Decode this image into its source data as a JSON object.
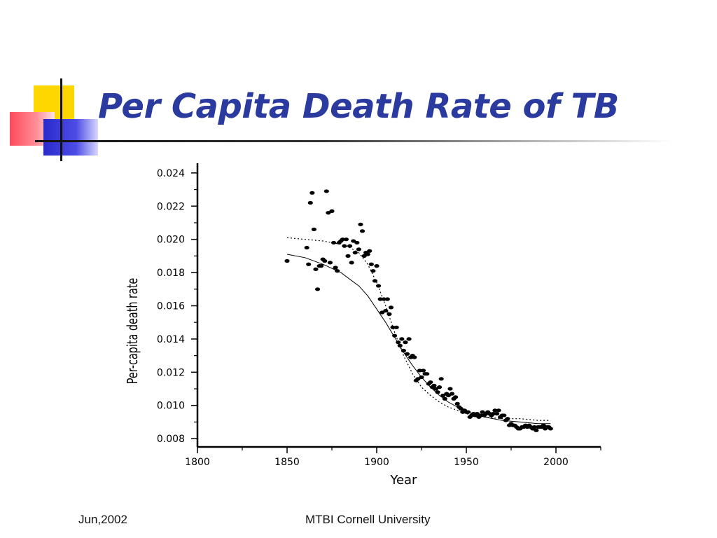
{
  "slide": {
    "title": "Per Capita Death Rate of TB",
    "footer_left": "Jun,2002",
    "footer_center": "MTBI Cornell University"
  },
  "colors": {
    "title": "#2b3a9e",
    "logo_yellow": "#ffd700",
    "logo_red": "#ff4a5a",
    "logo_blue": "#2a2acc"
  },
  "chart_data": {
    "type": "scatter",
    "xlabel": "Year",
    "ylabel": "Per-capita death rate",
    "xlim": [
      1800,
      2025
    ],
    "ylim": [
      0.0075,
      0.0245
    ],
    "xticks": [
      1800,
      1850,
      1900,
      1950,
      2000
    ],
    "yticks": [
      0.008,
      0.01,
      0.012,
      0.014,
      0.016,
      0.018,
      0.02,
      0.022,
      0.024
    ],
    "ytick_labels": [
      "0.008",
      "0.010",
      "0.012",
      "0.014",
      "0.016",
      "0.018",
      "0.020",
      "0.022",
      "0.024"
    ],
    "grid": false,
    "series": [
      {
        "kind": "points",
        "x": [
          1850,
          1861,
          1862,
          1863,
          1864,
          1865,
          1866,
          1867,
          1868,
          1869,
          1870,
          1871,
          1872,
          1873,
          1874,
          1875,
          1876,
          1877,
          1878,
          1879,
          1880,
          1881,
          1882,
          1883,
          1884,
          1885,
          1886,
          1887,
          1888,
          1889,
          1890,
          1891,
          1892,
          1893,
          1894,
          1895,
          1896,
          1897,
          1898,
          1899,
          1900,
          1901,
          1902,
          1903,
          1904,
          1905,
          1906,
          1907,
          1908,
          1909,
          1910,
          1911,
          1912,
          1913,
          1914,
          1915,
          1916,
          1917,
          1918,
          1919,
          1920,
          1921,
          1922,
          1923,
          1924,
          1925,
          1926,
          1927,
          1928,
          1929,
          1930,
          1931,
          1932,
          1933,
          1934,
          1935,
          1936,
          1937,
          1938,
          1939,
          1940,
          1941,
          1942,
          1943,
          1944,
          1945,
          1946,
          1947,
          1948,
          1949,
          1950,
          1951,
          1952,
          1953,
          1954,
          1955,
          1956,
          1957,
          1958,
          1959,
          1960,
          1961,
          1962,
          1963,
          1964,
          1965,
          1966,
          1967,
          1968,
          1969,
          1970,
          1971,
          1972,
          1973,
          1974,
          1975,
          1976,
          1977,
          1978,
          1979,
          1980,
          1981,
          1982,
          1983,
          1984,
          1985,
          1986,
          1987,
          1988,
          1989,
          1990,
          1991,
          1992,
          1993,
          1994,
          1995,
          1996,
          1997
        ],
        "y": [
          0.0187,
          0.0195,
          0.0185,
          0.0222,
          0.0228,
          0.0206,
          0.0182,
          0.017,
          0.0184,
          0.0184,
          0.0188,
          0.0187,
          0.0229,
          0.0216,
          0.0186,
          0.0217,
          0.0198,
          0.0183,
          0.0181,
          0.0198,
          0.0199,
          0.02,
          0.0196,
          0.02,
          0.019,
          0.0196,
          0.0186,
          0.0199,
          0.0192,
          0.0198,
          0.0194,
          0.0209,
          0.0205,
          0.019,
          0.0192,
          0.0191,
          0.0193,
          0.0185,
          0.0181,
          0.0175,
          0.0184,
          0.0172,
          0.0164,
          0.0156,
          0.0164,
          0.0157,
          0.0164,
          0.0155,
          0.0159,
          0.0147,
          0.0142,
          0.0147,
          0.0138,
          0.0136,
          0.014,
          0.0133,
          0.0138,
          0.0131,
          0.014,
          0.0129,
          0.013,
          0.0129,
          0.0115,
          0.0116,
          0.0121,
          0.0117,
          0.0121,
          0.0119,
          0.0119,
          0.0113,
          0.0114,
          0.0111,
          0.0112,
          0.011,
          0.0108,
          0.0111,
          0.0116,
          0.0106,
          0.0104,
          0.0107,
          0.0106,
          0.011,
          0.0107,
          0.0104,
          0.0105,
          0.0101,
          0.0099,
          0.0098,
          0.0096,
          0.0097,
          0.0096,
          0.0096,
          0.0093,
          0.0094,
          0.0095,
          0.0094,
          0.0095,
          0.0093,
          0.0094,
          0.0096,
          0.0094,
          0.0095,
          0.0096,
          0.0095,
          0.0094,
          0.0095,
          0.0097,
          0.0095,
          0.0097,
          0.0093,
          0.0094,
          0.0094,
          0.0091,
          0.0092,
          0.0088,
          0.0089,
          0.0088,
          0.0088,
          0.0087,
          0.0086,
          0.0086,
          0.0087,
          0.0087,
          0.0088,
          0.0087,
          0.0088,
          0.0087,
          0.0086,
          0.0087,
          0.0085,
          0.0087,
          0.0087,
          0.0087,
          0.0088,
          0.0086,
          0.0087,
          0.0087,
          0.0086
        ]
      },
      {
        "kind": "solid-curve",
        "x": [
          1850,
          1860,
          1870,
          1880,
          1890,
          1895,
          1900,
          1905,
          1910,
          1915,
          1920,
          1925,
          1930,
          1935,
          1940,
          1950,
          1960,
          1970,
          1980,
          1990,
          1997
        ],
        "y": [
          0.0191,
          0.0189,
          0.0185,
          0.018,
          0.0172,
          0.0166,
          0.0158,
          0.015,
          0.0141,
          0.0132,
          0.0124,
          0.0117,
          0.0111,
          0.0106,
          0.0102,
          0.0096,
          0.0093,
          0.0091,
          0.009,
          0.0089,
          0.0089
        ]
      },
      {
        "kind": "dotted-curve",
        "x": [
          1850,
          1860,
          1870,
          1880,
          1885,
          1890,
          1895,
          1900,
          1905,
          1910,
          1915,
          1920,
          1925,
          1930,
          1935,
          1940,
          1945,
          1950,
          1960,
          1970,
          1980,
          1990,
          1997
        ],
        "y": [
          0.0201,
          0.02,
          0.0199,
          0.0197,
          0.0195,
          0.0192,
          0.0185,
          0.0174,
          0.016,
          0.0144,
          0.013,
          0.0119,
          0.0111,
          0.0106,
          0.0102,
          0.0099,
          0.0097,
          0.0095,
          0.0093,
          0.0092,
          0.0092,
          0.0091,
          0.0091
        ]
      }
    ]
  }
}
